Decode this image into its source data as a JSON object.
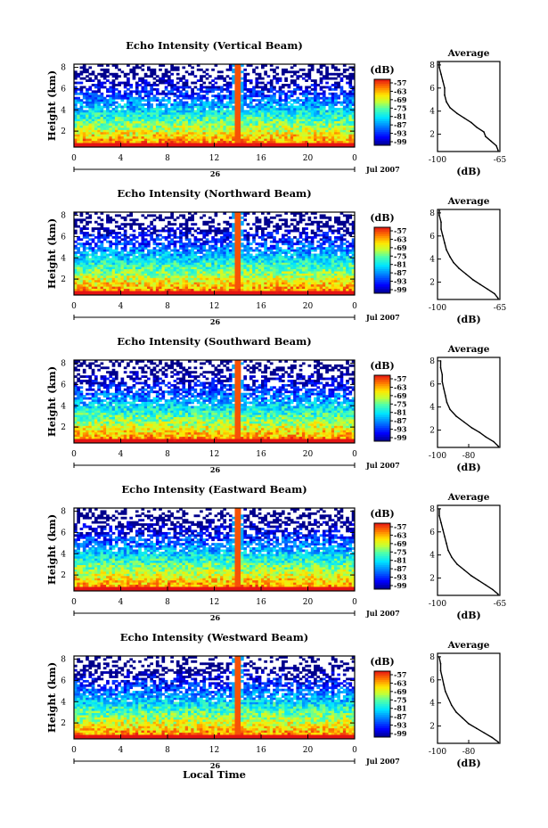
{
  "chart_data": [
    {
      "type": "heatmap",
      "title": "Echo Intensity (Vertical Beam)",
      "ylabel": "Height (km)",
      "x_ticks": [
        "0",
        "4",
        "8",
        "12",
        "16",
        "20",
        "0"
      ],
      "y_ticks": [
        "2",
        "4",
        "6",
        "8"
      ],
      "xlim": [
        0,
        24
      ],
      "ylim": [
        0.5,
        8.3
      ],
      "date_day": "26",
      "date_month_year": "Jul 2007",
      "colorbar": {
        "unit": "(dB)",
        "ticks": [
          "-57",
          "-63",
          "-69",
          "-75",
          "-81",
          "-87",
          "-93",
          "-99"
        ]
      },
      "profile": {
        "title": "Average",
        "xlabel": "(dB)",
        "x_ticks": [
          "-100",
          "-65"
        ],
        "xlim": [
          -100,
          -65
        ],
        "y_ticks": [
          "2",
          "4",
          "6",
          "8"
        ],
        "points": [
          [
            -66,
            0.6
          ],
          [
            -67,
            1.0
          ],
          [
            -70,
            1.4
          ],
          [
            -73,
            1.8
          ],
          [
            -74,
            2.2
          ],
          [
            -78,
            2.6
          ],
          [
            -81,
            3.0
          ],
          [
            -85,
            3.4
          ],
          [
            -89,
            3.8
          ],
          [
            -93,
            4.3
          ],
          [
            -95,
            4.8
          ],
          [
            -96,
            5.4
          ],
          [
            -96,
            6.0
          ],
          [
            -97,
            6.6
          ],
          [
            -98,
            7.2
          ],
          [
            -99,
            7.8
          ],
          [
            -99,
            8.2
          ]
        ]
      }
    },
    {
      "type": "heatmap",
      "title": "Echo Intensity (Northward Beam)",
      "ylabel": "Height (km)",
      "x_ticks": [
        "0",
        "4",
        "8",
        "12",
        "16",
        "20",
        "0"
      ],
      "y_ticks": [
        "2",
        "4",
        "6",
        "8"
      ],
      "xlim": [
        0,
        24
      ],
      "ylim": [
        0.5,
        8.3
      ],
      "date_day": "26",
      "date_month_year": "Jul 2007",
      "colorbar": {
        "unit": "(dB)",
        "ticks": [
          "-57",
          "-63",
          "-69",
          "-75",
          "-81",
          "-87",
          "-93",
          "-99"
        ]
      },
      "profile": {
        "title": "Average",
        "xlabel": "(dB)",
        "x_ticks": [
          "-100",
          "-65"
        ],
        "xlim": [
          -100,
          -65
        ],
        "y_ticks": [
          "2",
          "4",
          "6",
          "8"
        ],
        "points": [
          [
            -66,
            0.6
          ],
          [
            -68,
            1.0
          ],
          [
            -72,
            1.4
          ],
          [
            -76,
            1.8
          ],
          [
            -80,
            2.2
          ],
          [
            -84,
            2.7
          ],
          [
            -88,
            3.2
          ],
          [
            -91,
            3.7
          ],
          [
            -93,
            4.2
          ],
          [
            -95,
            4.8
          ],
          [
            -96,
            5.4
          ],
          [
            -97,
            6.0
          ],
          [
            -98,
            6.6
          ],
          [
            -98,
            7.2
          ],
          [
            -99,
            7.8
          ],
          [
            -99,
            8.2
          ]
        ]
      }
    },
    {
      "type": "heatmap",
      "title": "Echo Intensity (Southward Beam)",
      "ylabel": "Height (km)",
      "x_ticks": [
        "0",
        "4",
        "8",
        "12",
        "16",
        "20",
        "0"
      ],
      "y_ticks": [
        "2",
        "4",
        "6",
        "8"
      ],
      "xlim": [
        0,
        24
      ],
      "ylim": [
        0.5,
        8.3
      ],
      "date_day": "26",
      "date_month_year": "Jul 2007",
      "colorbar": {
        "unit": "(dB)",
        "ticks": [
          "-57",
          "-63",
          "-69",
          "-75",
          "-81",
          "-87",
          "-93",
          "-99"
        ]
      },
      "profile": {
        "title": "Average",
        "xlabel": "(dB)",
        "x_ticks": [
          "-100",
          "-80"
        ],
        "xlim": [
          -100,
          -60
        ],
        "y_ticks": [
          "2",
          "4",
          "6",
          "8"
        ],
        "points": [
          [
            -61,
            0.6
          ],
          [
            -64,
            1.0
          ],
          [
            -69,
            1.4
          ],
          [
            -73,
            1.8
          ],
          [
            -78,
            2.2
          ],
          [
            -83,
            2.7
          ],
          [
            -88,
            3.2
          ],
          [
            -92,
            3.8
          ],
          [
            -94,
            4.4
          ],
          [
            -95,
            5.0
          ],
          [
            -96,
            5.6
          ],
          [
            -97,
            6.2
          ],
          [
            -97,
            6.8
          ],
          [
            -98,
            7.4
          ],
          [
            -98,
            8.0
          ]
        ]
      }
    },
    {
      "type": "heatmap",
      "title": "Echo Intensity (Eastward Beam)",
      "ylabel": "Height (km)",
      "x_ticks": [
        "0",
        "4",
        "8",
        "12",
        "16",
        "20",
        "0"
      ],
      "y_ticks": [
        "2",
        "4",
        "6",
        "8"
      ],
      "xlim": [
        0,
        24
      ],
      "ylim": [
        0.5,
        8.3
      ],
      "date_day": "26",
      "date_month_year": "Jul 2007",
      "colorbar": {
        "unit": "(dB)",
        "ticks": [
          "-57",
          "-63",
          "-69",
          "-75",
          "-81",
          "-87",
          "-93",
          "-99"
        ]
      },
      "profile": {
        "title": "Average",
        "xlabel": "(dB)",
        "x_ticks": [
          "-100",
          "-65"
        ],
        "xlim": [
          -100,
          -65
        ],
        "y_ticks": [
          "2",
          "4",
          "6",
          "8"
        ],
        "points": [
          [
            -66,
            0.6
          ],
          [
            -69,
            1.0
          ],
          [
            -73,
            1.4
          ],
          [
            -77,
            1.8
          ],
          [
            -81,
            2.2
          ],
          [
            -85,
            2.7
          ],
          [
            -89,
            3.2
          ],
          [
            -92,
            3.8
          ],
          [
            -94,
            4.4
          ],
          [
            -95,
            5.0
          ],
          [
            -96,
            5.6
          ],
          [
            -97,
            6.2
          ],
          [
            -98,
            6.8
          ],
          [
            -99,
            7.4
          ],
          [
            -99,
            8.0
          ]
        ]
      }
    },
    {
      "type": "heatmap",
      "title": "Echo Intensity (Westward Beam)",
      "ylabel": "Height (km)",
      "x_ticks": [
        "0",
        "4",
        "8",
        "12",
        "16",
        "20",
        "0"
      ],
      "y_ticks": [
        "2",
        "4",
        "6",
        "8"
      ],
      "xlim": [
        0,
        24
      ],
      "ylim": [
        0.5,
        8.3
      ],
      "date_day": "26",
      "date_month_year": "Jul 2007",
      "xlabel": "Local Time",
      "colorbar": {
        "unit": "(dB)",
        "ticks": [
          "-57",
          "-63",
          "-69",
          "-75",
          "-81",
          "-87",
          "-93",
          "-99"
        ]
      },
      "profile": {
        "title": "Average",
        "xlabel": "(dB)",
        "x_ticks": [
          "-100",
          "-80"
        ],
        "xlim": [
          -100,
          -60
        ],
        "y_ticks": [
          "2",
          "4",
          "6",
          "8"
        ],
        "points": [
          [
            -61,
            0.6
          ],
          [
            -65,
            1.0
          ],
          [
            -70,
            1.4
          ],
          [
            -75,
            1.8
          ],
          [
            -80,
            2.2
          ],
          [
            -84,
            2.7
          ],
          [
            -88,
            3.2
          ],
          [
            -91,
            3.8
          ],
          [
            -93,
            4.4
          ],
          [
            -95,
            5.0
          ],
          [
            -96,
            5.6
          ],
          [
            -97,
            6.2
          ],
          [
            -98,
            6.8
          ],
          [
            -98,
            7.4
          ],
          [
            -99,
            8.0
          ]
        ]
      }
    }
  ]
}
